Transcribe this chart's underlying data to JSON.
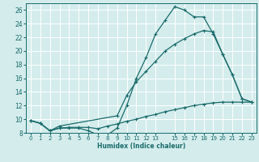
{
  "xlabel": "Humidex (Indice chaleur)",
  "bg_color": "#d4ecec",
  "grid_color": "#ffffff",
  "line_color": "#1a6b6b",
  "xlim": [
    -0.5,
    23.5
  ],
  "ylim": [
    8,
    27
  ],
  "xticks": [
    0,
    1,
    2,
    3,
    4,
    5,
    6,
    7,
    8,
    9,
    10,
    11,
    12,
    13,
    15,
    16,
    17,
    18,
    19,
    20,
    21,
    22,
    23
  ],
  "yticks": [
    8,
    10,
    12,
    14,
    16,
    18,
    20,
    22,
    24,
    26
  ],
  "line1_x": [
    0,
    1,
    2,
    3,
    4,
    5,
    6,
    7,
    8,
    9,
    10,
    11,
    12,
    13,
    14,
    15,
    16,
    17,
    18,
    19,
    20,
    21,
    22,
    23
  ],
  "line1_y": [
    9.8,
    9.4,
    8.3,
    8.7,
    8.7,
    8.7,
    8.3,
    7.7,
    7.7,
    8.7,
    12.0,
    16.0,
    19.0,
    22.5,
    24.5,
    26.5,
    26.0,
    25.0,
    25.0,
    22.5,
    19.5,
    16.5,
    13.0,
    12.5
  ],
  "line2_x": [
    0,
    1,
    2,
    3,
    9,
    10,
    11,
    12,
    13,
    14,
    15,
    16,
    17,
    18,
    19,
    20,
    21,
    22,
    23
  ],
  "line2_y": [
    9.8,
    9.4,
    8.3,
    9.0,
    10.5,
    13.5,
    15.5,
    17.0,
    18.5,
    20.0,
    21.0,
    21.8,
    22.5,
    23.0,
    22.8,
    19.5,
    16.5,
    13.0,
    12.5
  ],
  "line3_x": [
    0,
    1,
    2,
    3,
    4,
    5,
    6,
    7,
    8,
    9,
    10,
    11,
    12,
    13,
    14,
    15,
    16,
    17,
    18,
    19,
    20,
    21,
    22,
    23
  ],
  "line3_y": [
    9.8,
    9.4,
    8.3,
    8.7,
    8.8,
    8.8,
    8.8,
    8.6,
    9.0,
    9.3,
    9.7,
    10.0,
    10.4,
    10.7,
    11.1,
    11.4,
    11.7,
    12.0,
    12.2,
    12.4,
    12.5,
    12.5,
    12.5,
    12.5
  ]
}
